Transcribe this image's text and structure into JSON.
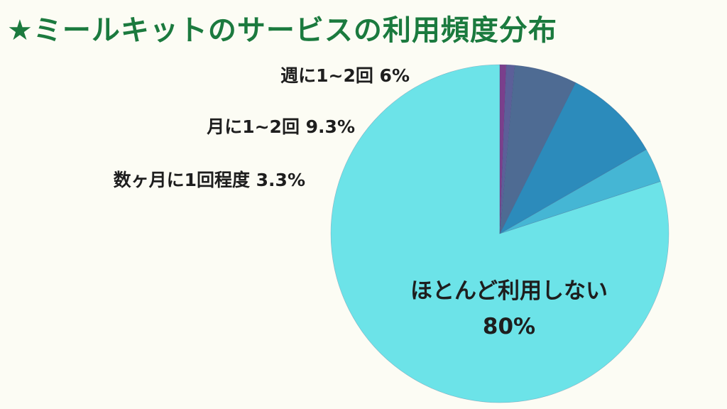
{
  "title": "★ミールキットのサービスの利用頻度分布",
  "chart_data": {
    "type": "pie",
    "title": "★ミールキットのサービスの利用頻度分布",
    "start": "top",
    "direction": "counterclockwise",
    "slices": [
      {
        "name": "ほとんど利用しない",
        "value": 80,
        "value_label": "80%",
        "color": "#6ce3e8",
        "label_position": "inside"
      },
      {
        "name": "数ヶ月に1回程度",
        "value": 3.3,
        "value_label": "3.3%",
        "color": "#45b6d4",
        "label_position": "outside"
      },
      {
        "name": "月に1~2回",
        "value": 9.3,
        "value_label": "9.3%",
        "color": "#2c8bbb",
        "label_position": "outside"
      },
      {
        "name": "週に1~2回",
        "value": 6,
        "value_label": "6%",
        "color": "#4e6b93",
        "label_position": "outside"
      },
      {
        "name": "",
        "value": 0.8,
        "value_label": "",
        "color": "#5c5f99",
        "label_position": "none"
      },
      {
        "name": "",
        "value": 0.6,
        "value_label": "",
        "color": "#7a3f8c",
        "label_position": "none"
      }
    ]
  }
}
